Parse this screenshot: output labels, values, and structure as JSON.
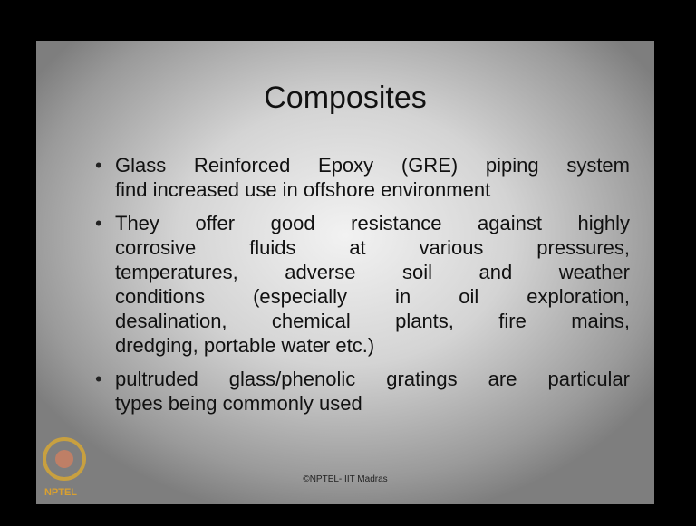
{
  "slide": {
    "title": "Composites",
    "bullets": [
      {
        "lines": [
          "Glass Reinforced Epoxy (GRE) piping system",
          "find increased use in offshore environment"
        ]
      },
      {
        "lines": [
          "They offer good resistance against highly",
          "corrosive fluids at various pressures,",
          "temperatures, adverse soil and weather",
          "conditions (especially in oil exploration,",
          "desalination, chemical plants, fire mains,",
          "dredging, portable water etc.)"
        ]
      },
      {
        "lines": [
          "pultruded glass/phenolic gratings are particular",
          "types being commonly used"
        ]
      }
    ],
    "footer": "©NPTEL- IIT Madras",
    "logo_text": "NPTEL"
  }
}
